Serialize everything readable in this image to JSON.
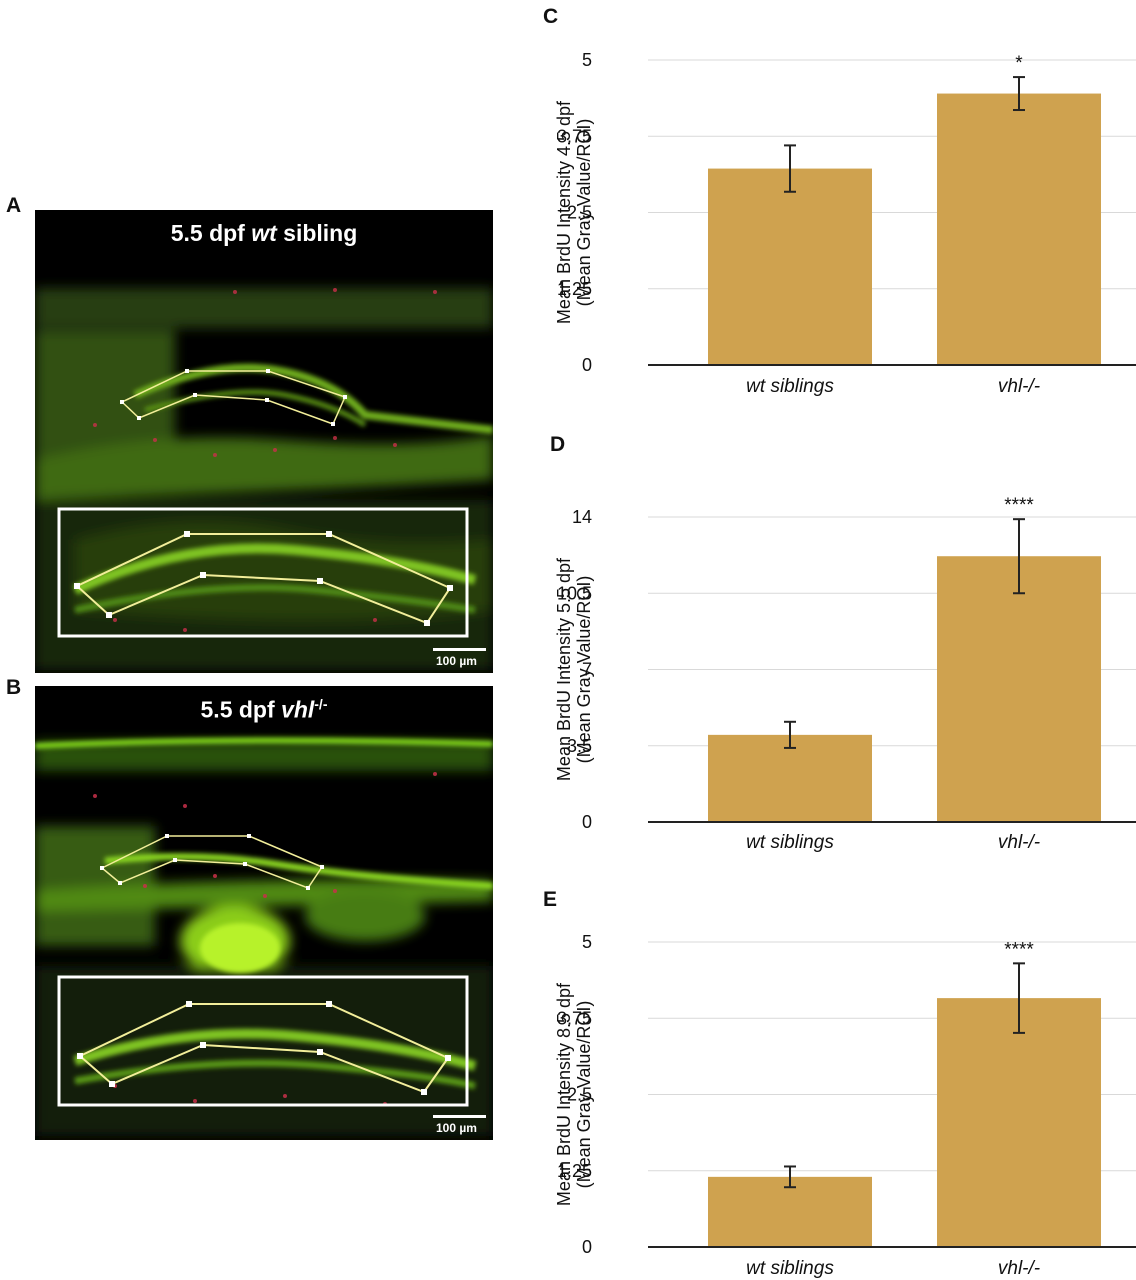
{
  "panels": {
    "A": {
      "letter": "A",
      "title_prefix": "5.5 dpf ",
      "title_italic": "wt",
      "title_suffix": " sibling",
      "scalebar": "100 µm"
    },
    "B": {
      "letter": "B",
      "title_prefix": "5.5 dpf ",
      "title_italic": "vhl",
      "title_sup": "-/-",
      "scalebar": "100 µm"
    }
  },
  "colors": {
    "bar": "#CFA24F",
    "grid": "#D9D9D9",
    "axis": "#222222",
    "micro_green": "#7FD21F",
    "micro_red": "#D0304A",
    "roi_line": "#F2EE9A"
  },
  "chart_data": [
    {
      "letter": "C",
      "type": "bar",
      "categories": [
        "wt siblings",
        "vhl-/-"
      ],
      "values": [
        3.22,
        4.45
      ],
      "errors": [
        0.38,
        0.27
      ],
      "significance": [
        "",
        "*"
      ],
      "yticks": [
        "0",
        "1.25",
        "2.5",
        "3.75",
        "5"
      ],
      "ylim": [
        0,
        5
      ],
      "ylabel_line1": "Mean BrdU Intensity 4.5 dpf",
      "ylabel_line2": "(Mean Gray Value/ROI)",
      "grid": true
    },
    {
      "letter": "D",
      "type": "bar",
      "categories": [
        "wt siblings",
        "vhl-/-"
      ],
      "values": [
        4.0,
        12.2
      ],
      "errors": [
        0.6,
        1.7
      ],
      "significance": [
        "",
        "****"
      ],
      "yticks": [
        "0",
        "3.5",
        "7",
        "10.5",
        "14"
      ],
      "ylim": [
        0,
        14
      ],
      "ylabel_line1": "Mean BrdU Intensity 5.5 dpf",
      "ylabel_line2": "(Mean Gray Value/ROI)",
      "grid": true
    },
    {
      "letter": "E",
      "type": "bar",
      "categories": [
        "wt siblings",
        "vhl-/-"
      ],
      "values": [
        1.15,
        4.08
      ],
      "errors": [
        0.17,
        0.57
      ],
      "significance": [
        "",
        "****"
      ],
      "yticks": [
        "0",
        "1.25",
        "2.5",
        "3.75",
        "5"
      ],
      "ylim": [
        0,
        5
      ],
      "ylabel_line1": "Mean BrdU Intensity 8.5 dpf",
      "ylabel_line2": "(Mean Gray Value/ROI)",
      "grid": true
    }
  ]
}
